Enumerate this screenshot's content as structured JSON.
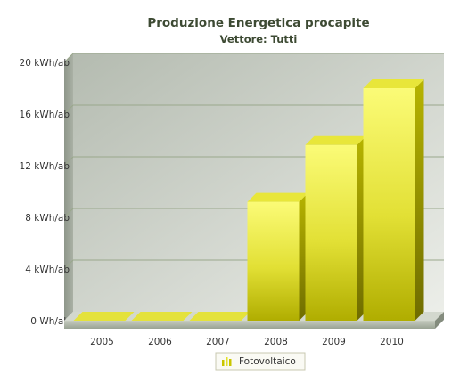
{
  "chart_data": {
    "type": "bar",
    "title": "Produzione Energetica procapite",
    "subtitle": "Vettore: Tutti",
    "categories": [
      "2005",
      "2006",
      "2007",
      "2008",
      "2009",
      "2010"
    ],
    "series": [
      {
        "name": "Fotovoltaico",
        "values": [
          0,
          0,
          0,
          9.2,
          13.6,
          18.0
        ],
        "color": "#e8e82a"
      }
    ],
    "y_ticks": [
      "0 Wh/ab",
      "4 kWh/ab",
      "8 kWh/ab",
      "12 kWh/ab",
      "16 kWh/ab",
      "20 kWh/ab"
    ],
    "ylim": [
      0,
      20
    ],
    "grid": true,
    "legend_position": "bottom"
  },
  "colors": {
    "title": "#3d4a33",
    "plot_bg_dark": "#b4bbb0",
    "plot_bg_light": "#e9ebe6",
    "grid": "#9aa88c",
    "bar_front_light": "#fbfb77",
    "bar_front_dark": "#b0ad00",
    "bar_top": "#e8e63a",
    "bar_side": "#8a8600"
  }
}
